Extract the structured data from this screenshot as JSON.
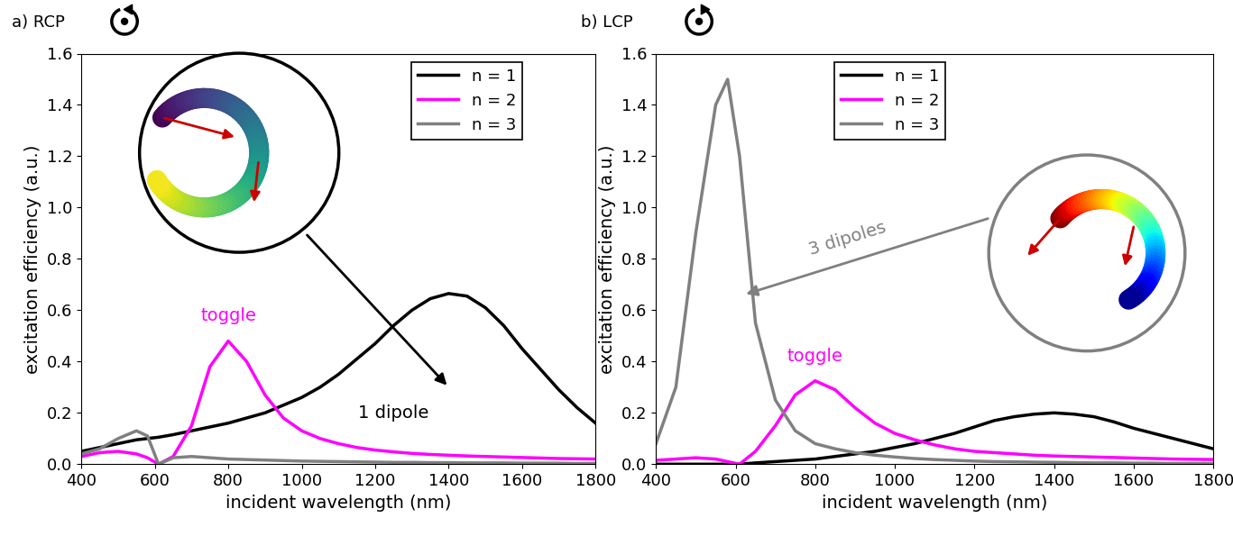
{
  "chart_data": [
    {
      "type": "line",
      "title": "a) RCP",
      "x_label": "incident wavelength (nm)",
      "y_label": "excitation efficiency (a.u.)",
      "x": [
        400,
        450,
        500,
        550,
        580,
        610,
        650,
        700,
        750,
        800,
        850,
        900,
        950,
        1000,
        1050,
        1100,
        1150,
        1200,
        1250,
        1300,
        1350,
        1400,
        1450,
        1500,
        1550,
        1600,
        1650,
        1700,
        1750,
        1800
      ],
      "series": [
        {
          "name": "n = 1",
          "color": "#000000",
          "values": [
            0.05,
            0.065,
            0.08,
            0.095,
            0.1,
            0.105,
            0.115,
            0.13,
            0.145,
            0.16,
            0.18,
            0.2,
            0.23,
            0.26,
            0.3,
            0.35,
            0.41,
            0.47,
            0.54,
            0.6,
            0.645,
            0.665,
            0.655,
            0.61,
            0.54,
            0.45,
            0.37,
            0.29,
            0.22,
            0.16
          ]
        },
        {
          "name": "n = 2",
          "color": "#ff00ff",
          "values": [
            0.03,
            0.045,
            0.05,
            0.04,
            0.025,
            0.0,
            0.03,
            0.15,
            0.38,
            0.48,
            0.4,
            0.27,
            0.18,
            0.13,
            0.1,
            0.08,
            0.065,
            0.055,
            0.048,
            0.042,
            0.038,
            0.035,
            0.032,
            0.03,
            0.028,
            0.026,
            0.024,
            0.022,
            0.021,
            0.02
          ]
        },
        {
          "name": "n = 3",
          "color": "#808080",
          "values": [
            0.04,
            0.06,
            0.1,
            0.13,
            0.11,
            0.0,
            0.025,
            0.03,
            0.025,
            0.02,
            0.018,
            0.016,
            0.014,
            0.012,
            0.011,
            0.01,
            0.009,
            0.008,
            0.007,
            0.007,
            0.006,
            0.006,
            0.005,
            0.005,
            0.005,
            0.004,
            0.004,
            0.004,
            0.003,
            0.003
          ]
        }
      ],
      "annotations": [
        "toggle",
        "1 dipole"
      ],
      "xlim": [
        400,
        1800
      ],
      "xticks": [
        400,
        600,
        800,
        1000,
        1200,
        1400,
        1600,
        1800
      ],
      "ylim": [
        0,
        1.6
      ],
      "yticks": [
        {
          "value": 0,
          "label": "0.0"
        },
        0.2,
        0.4,
        0.6,
        0.8,
        {
          "value": 1,
          "label": "1.0"
        },
        1.2,
        1.4,
        1.6
      ],
      "legend": "upper center",
      "grid": false
    },
    {
      "type": "line",
      "title": "b) LCP",
      "x_label": "incident wavelength (nm)",
      "y_label": "excitation efficiency (a.u.)",
      "x": [
        400,
        450,
        500,
        550,
        580,
        610,
        650,
        700,
        750,
        800,
        850,
        900,
        950,
        1000,
        1050,
        1100,
        1150,
        1200,
        1250,
        1300,
        1350,
        1400,
        1450,
        1500,
        1550,
        1600,
        1650,
        1700,
        1750,
        1800
      ],
      "series": [
        {
          "name": "n = 1",
          "color": "#000000",
          "values": [
            0.0,
            0.0,
            0.0,
            0.0,
            0.0,
            0.0,
            0.005,
            0.01,
            0.015,
            0.02,
            0.03,
            0.04,
            0.05,
            0.065,
            0.08,
            0.1,
            0.12,
            0.145,
            0.17,
            0.185,
            0.195,
            0.2,
            0.195,
            0.185,
            0.165,
            0.14,
            0.12,
            0.1,
            0.08,
            0.06
          ]
        },
        {
          "name": "n = 2",
          "color": "#ff00ff",
          "values": [
            0.015,
            0.02,
            0.025,
            0.02,
            0.01,
            0.0,
            0.05,
            0.15,
            0.27,
            0.325,
            0.29,
            0.22,
            0.16,
            0.12,
            0.095,
            0.075,
            0.06,
            0.05,
            0.045,
            0.04,
            0.035,
            0.032,
            0.03,
            0.028,
            0.026,
            0.024,
            0.022,
            0.02,
            0.019,
            0.018
          ]
        },
        {
          "name": "n = 3",
          "color": "#808080",
          "values": [
            0.08,
            0.3,
            0.9,
            1.4,
            1.5,
            1.2,
            0.55,
            0.25,
            0.13,
            0.08,
            0.06,
            0.045,
            0.035,
            0.028,
            0.022,
            0.018,
            0.015,
            0.012,
            0.01,
            0.009,
            0.008,
            0.007,
            0.006,
            0.005,
            0.005,
            0.004,
            0.004,
            0.003,
            0.003,
            0.003
          ]
        }
      ],
      "annotations": [
        "toggle",
        "3 dipoles"
      ],
      "xlim": [
        400,
        1800
      ],
      "xticks": [
        400,
        600,
        800,
        1000,
        1200,
        1400,
        1600,
        1800
      ],
      "ylim": [
        0,
        1.6
      ],
      "yticks": [
        {
          "value": 0,
          "label": "0.0"
        },
        0.2,
        0.4,
        0.6,
        0.8,
        {
          "value": 1,
          "label": "1.0"
        },
        1.2,
        1.4,
        1.6
      ],
      "legend": "upper center",
      "grid": false
    }
  ]
}
